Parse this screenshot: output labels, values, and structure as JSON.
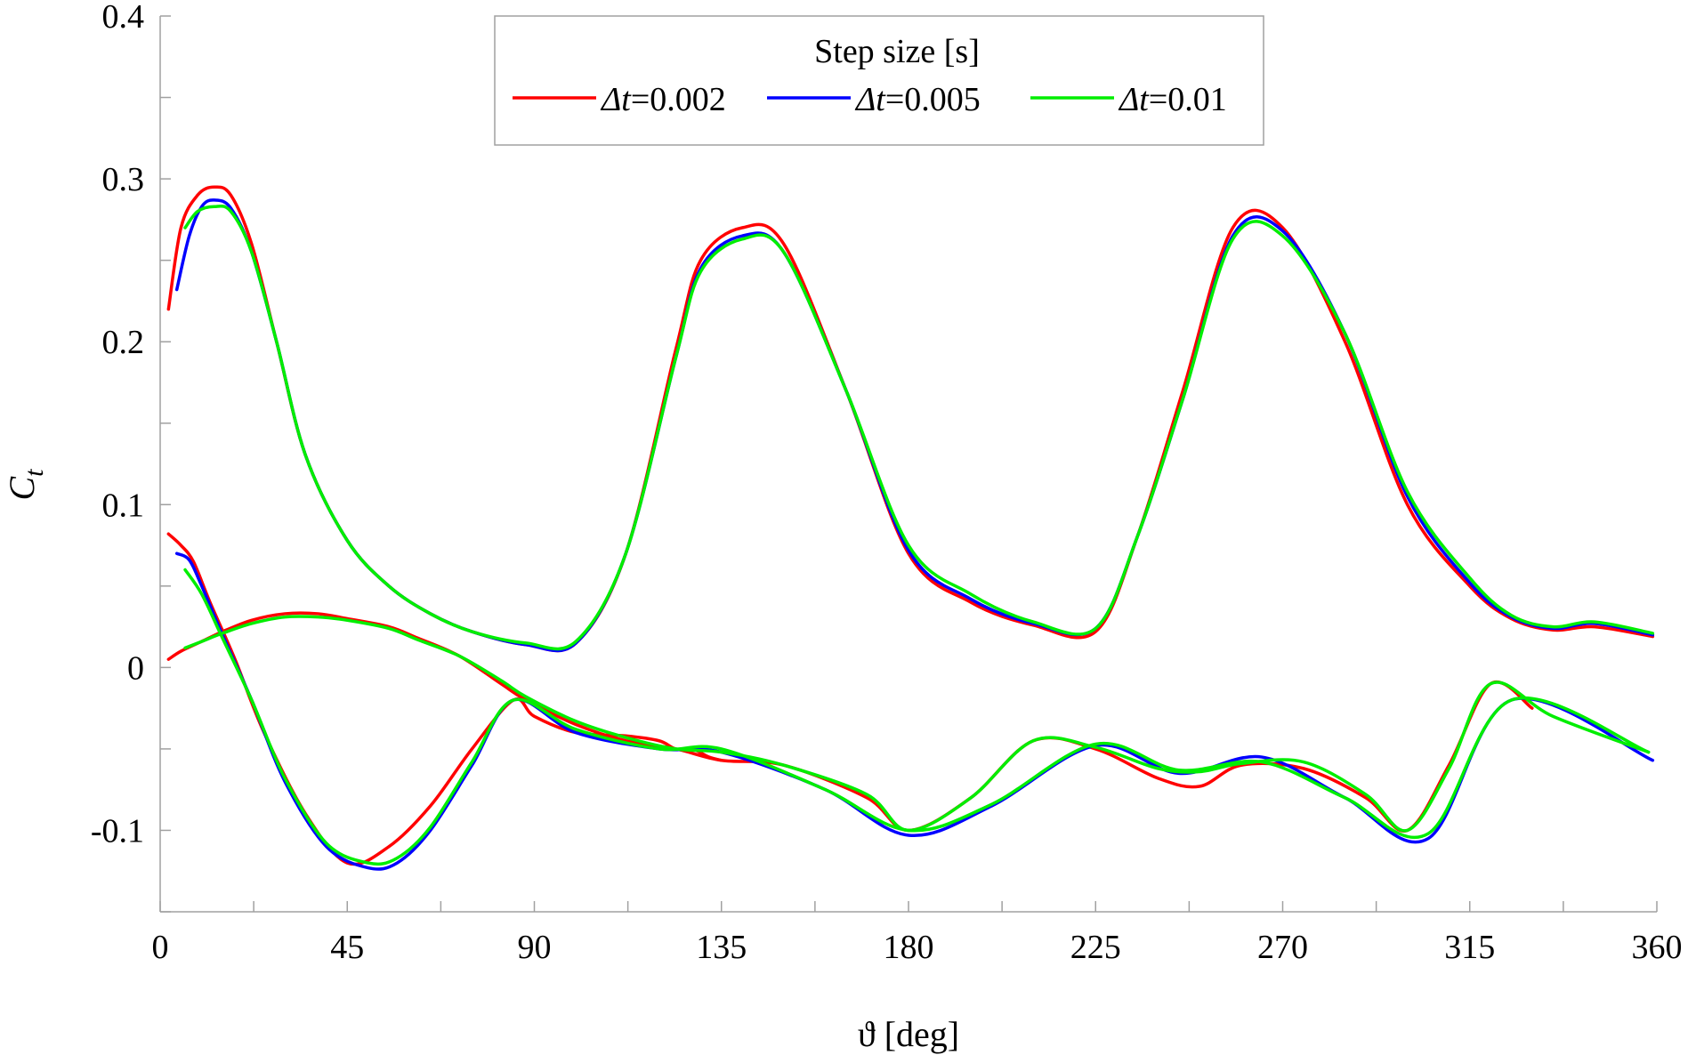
{
  "chart_data": {
    "type": "line",
    "title": "",
    "xlabel": "ϑ [deg]",
    "ylabel_main": "C",
    "ylabel_sub": "t",
    "xlim": [
      0,
      360
    ],
    "ylim": [
      -0.15,
      0.4
    ],
    "x_ticks": [
      0,
      45,
      90,
      135,
      180,
      225,
      270,
      315,
      360
    ],
    "x_tick_labels": [
      "0",
      "45",
      "90",
      "135",
      "180",
      "225",
      "270",
      "315",
      "360"
    ],
    "x_minor_step": 22.5,
    "y_ticks": [
      -0.1,
      0,
      0.1,
      0.2,
      0.3,
      0.4
    ],
    "y_tick_labels": [
      "-0.1",
      "0",
      "0.1",
      "0.2",
      "0.3",
      "0.4"
    ],
    "y_minor_step": 0.05,
    "grid": false,
    "legend": {
      "title": "Step size [s]",
      "placement": "top-center",
      "entries": [
        {
          "symbol": "Δt",
          "value": "=0.002",
          "color": "#ff0000"
        },
        {
          "symbol": "Δt",
          "value": "=0.005",
          "color": "#0000ff"
        },
        {
          "symbol": "Δt",
          "value": "=0.01",
          "color": "#00ee00"
        }
      ]
    },
    "series": [
      {
        "name": "Δt=0.002 blade 1",
        "color": "#ff0000",
        "x": [
          2,
          5,
          9,
          13,
          17,
          22,
          28,
          35,
          45,
          55,
          65,
          75,
          88,
          100,
          112,
          124,
          130,
          140,
          150,
          165,
          180,
          195,
          210,
          225,
          235,
          246,
          258,
          270,
          285,
          300,
          315,
          325,
          335,
          345,
          359
        ],
        "y": [
          0.22,
          0.27,
          0.29,
          0.295,
          0.29,
          0.26,
          0.2,
          0.13,
          0.078,
          0.05,
          0.033,
          0.022,
          0.014,
          0.015,
          0.07,
          0.195,
          0.25,
          0.27,
          0.26,
          0.17,
          0.07,
          0.04,
          0.026,
          0.022,
          0.08,
          0.17,
          0.27,
          0.27,
          0.2,
          0.1,
          0.05,
          0.03,
          0.023,
          0.025,
          0.019
        ]
      },
      {
        "name": "Δt=0.002 blade 2",
        "color": "#ff0000",
        "x": [
          2,
          5,
          10,
          15,
          22,
          30,
          38,
          45,
          55,
          62,
          72,
          82,
          88,
          100,
          112,
          124,
          135,
          150,
          170,
          180,
          195,
          210,
          225,
          240,
          250,
          260,
          275,
          290,
          300,
          310,
          320,
          330
        ],
        "y": [
          0.005,
          0.01,
          0.016,
          0.022,
          0.029,
          0.033,
          0.033,
          0.03,
          0.025,
          0.018,
          0.007,
          -0.01,
          -0.02,
          -0.035,
          -0.045,
          -0.05,
          -0.057,
          -0.06,
          -0.08,
          -0.1,
          -0.08,
          -0.045,
          -0.05,
          -0.068,
          -0.073,
          -0.06,
          -0.062,
          -0.08,
          -0.1,
          -0.06,
          -0.01,
          -0.025
        ]
      },
      {
        "name": "Δt=0.002 blade 3",
        "color": "#ff0000",
        "x": [
          2,
          5,
          8,
          12,
          18,
          25,
          35,
          45,
          55,
          65,
          75,
          85,
          90,
          100,
          112,
          120,
          124,
          128,
          132,
          135
        ],
        "y": [
          0.082,
          0.075,
          0.065,
          0.04,
          0.005,
          -0.04,
          -0.09,
          -0.12,
          -0.11,
          -0.085,
          -0.05,
          -0.02,
          -0.03,
          -0.04,
          -0.042,
          -0.045,
          -0.05,
          -0.05,
          -0.055,
          -0.057
        ]
      },
      {
        "name": "Δt=0.005 blade 1",
        "color": "#0000ff",
        "x": [
          4,
          7,
          10,
          13,
          17,
          22,
          28,
          35,
          45,
          55,
          65,
          75,
          88,
          100,
          112,
          124,
          130,
          140,
          150,
          165,
          180,
          195,
          210,
          225,
          235,
          246,
          258,
          270,
          285,
          300,
          315,
          325,
          335,
          345,
          359
        ],
        "y": [
          0.232,
          0.265,
          0.283,
          0.287,
          0.282,
          0.255,
          0.2,
          0.13,
          0.078,
          0.05,
          0.033,
          0.022,
          0.014,
          0.015,
          0.07,
          0.19,
          0.245,
          0.265,
          0.255,
          0.17,
          0.072,
          0.042,
          0.027,
          0.024,
          0.08,
          0.165,
          0.265,
          0.268,
          0.205,
          0.105,
          0.052,
          0.031,
          0.024,
          0.027,
          0.02
        ]
      },
      {
        "name": "Δt=0.005 blade 3",
        "color": "#0000ff",
        "x": [
          4,
          7,
          10,
          15,
          22,
          30,
          40,
          50,
          57,
          65,
          75,
          85,
          100,
          120,
          135,
          160,
          180,
          200,
          225,
          245,
          265,
          285,
          305,
          325,
          359
        ],
        "y": [
          0.07,
          0.066,
          0.05,
          0.02,
          -0.02,
          -0.07,
          -0.11,
          -0.123,
          -0.12,
          -0.1,
          -0.06,
          -0.02,
          -0.04,
          -0.05,
          -0.052,
          -0.075,
          -0.103,
          -0.085,
          -0.048,
          -0.065,
          -0.055,
          -0.08,
          -0.105,
          -0.02,
          -0.057
        ]
      },
      {
        "name": "Δt=0.01 blade 1",
        "color": "#00ee00",
        "x": [
          6,
          9,
          13,
          17,
          22,
          28,
          35,
          45,
          55,
          65,
          75,
          88,
          100,
          112,
          124,
          130,
          140,
          150,
          165,
          180,
          195,
          210,
          225,
          235,
          246,
          258,
          270,
          285,
          300,
          315,
          325,
          335,
          345,
          359
        ],
        "y": [
          0.27,
          0.28,
          0.283,
          0.28,
          0.255,
          0.2,
          0.13,
          0.078,
          0.05,
          0.033,
          0.022,
          0.015,
          0.016,
          0.07,
          0.19,
          0.243,
          0.263,
          0.255,
          0.17,
          0.075,
          0.045,
          0.028,
          0.024,
          0.08,
          0.165,
          0.263,
          0.265,
          0.205,
          0.108,
          0.055,
          0.032,
          0.025,
          0.028,
          0.021
        ]
      },
      {
        "name": "Δt=0.01 blade 3",
        "color": "#00ee00",
        "x": [
          6,
          10,
          15,
          22,
          30,
          40,
          50,
          57,
          65,
          75,
          85,
          100,
          120,
          135,
          160,
          180,
          200,
          225,
          245,
          265,
          285,
          305,
          325,
          358
        ],
        "y": [
          0.06,
          0.045,
          0.018,
          -0.02,
          -0.068,
          -0.108,
          -0.12,
          -0.117,
          -0.098,
          -0.058,
          -0.02,
          -0.038,
          -0.05,
          -0.05,
          -0.075,
          -0.1,
          -0.084,
          -0.047,
          -0.063,
          -0.058,
          -0.08,
          -0.102,
          -0.02,
          -0.052
        ]
      },
      {
        "name": "Δt=0.01 blade 2",
        "color": "#00ee00",
        "x": [
          6,
          10,
          15,
          22,
          30,
          38,
          45,
          55,
          62,
          72,
          82,
          88,
          100,
          112,
          124,
          135,
          150,
          170,
          180,
          195,
          210,
          225,
          240,
          250,
          260,
          275,
          290,
          300,
          310,
          320,
          335,
          358
        ],
        "y": [
          0.012,
          0.016,
          0.021,
          0.027,
          0.031,
          0.031,
          0.029,
          0.024,
          0.017,
          0.007,
          -0.008,
          -0.018,
          -0.033,
          -0.043,
          -0.05,
          -0.052,
          -0.06,
          -0.078,
          -0.1,
          -0.08,
          -0.045,
          -0.049,
          -0.062,
          -0.064,
          -0.059,
          -0.058,
          -0.078,
          -0.1,
          -0.062,
          -0.01,
          -0.03,
          -0.052
        ]
      }
    ]
  }
}
